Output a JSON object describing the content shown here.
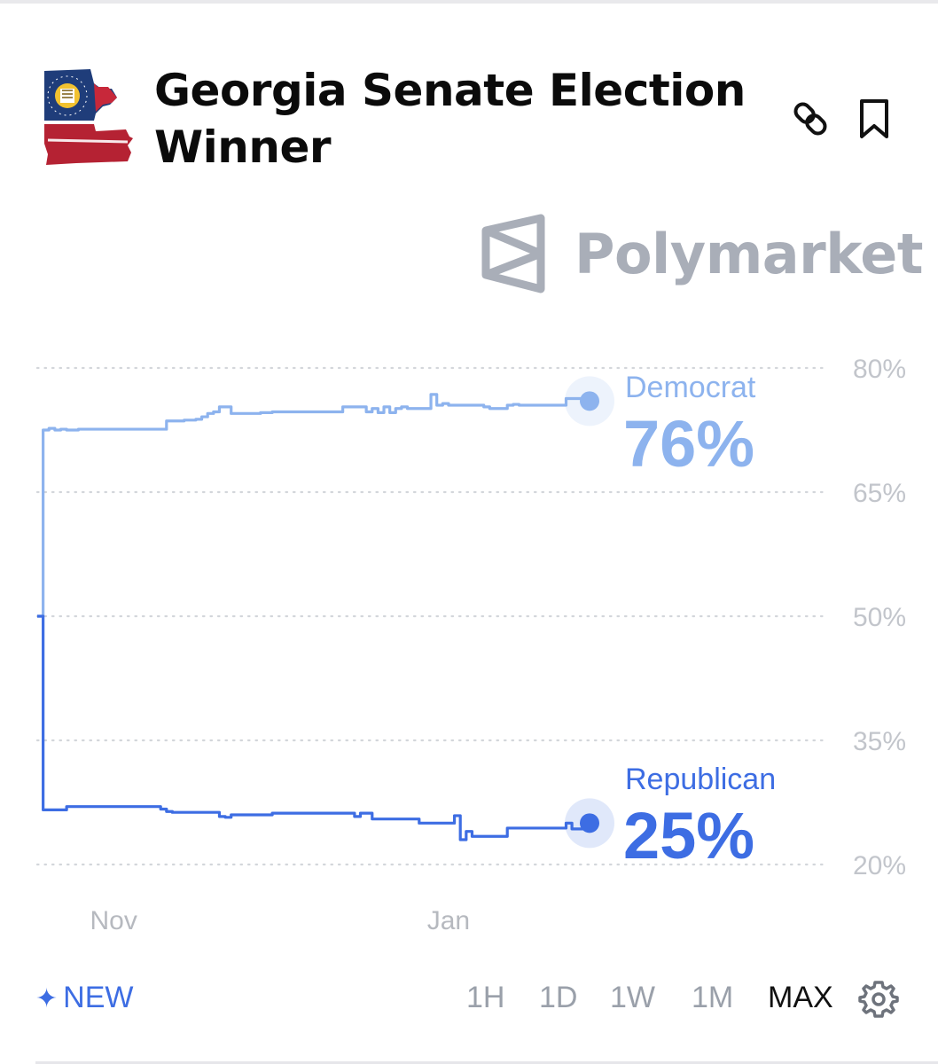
{
  "market": {
    "title": "Georgia Senate Election Winner"
  },
  "watermark": {
    "text": "Polymarket"
  },
  "icons": {
    "logo": "georgia-state-flag-icon",
    "link": "link-icon",
    "bookmark": "bookmark-icon",
    "settings": "gear-icon",
    "spark": "sparkle-icon"
  },
  "chart_data": {
    "type": "line",
    "ylim": [
      20,
      80
    ],
    "yticks": [
      "80%",
      "65%",
      "50%",
      "35%",
      "20%"
    ],
    "ytick_values": [
      80,
      65,
      50,
      35,
      20
    ],
    "xticks": [
      "Nov",
      "Jan"
    ],
    "xtick_index": [
      13,
      70
    ],
    "grid": true,
    "x_count": 95,
    "series": [
      {
        "name": "Democrat",
        "label": "76%",
        "color": "#8db3ee",
        "values": [
          50,
          72.5,
          72.7,
          72.5,
          72.6,
          72.5,
          72.5,
          72.6,
          72.6,
          72.6,
          72.6,
          72.6,
          72.6,
          72.6,
          72.6,
          72.6,
          72.6,
          72.6,
          72.6,
          72.6,
          72.6,
          72.6,
          73.6,
          73.6,
          73.6,
          73.7,
          73.7,
          73.8,
          74.1,
          74.5,
          74.7,
          75.3,
          75.3,
          74.5,
          74.5,
          74.5,
          74.5,
          74.5,
          74.6,
          74.6,
          74.7,
          74.7,
          74.7,
          74.7,
          74.7,
          74.7,
          74.7,
          74.7,
          74.7,
          74.7,
          74.7,
          74.7,
          75.3,
          75.3,
          75.3,
          75.3,
          74.7,
          75.1,
          74.6,
          75.3,
          74.6,
          75.1,
          75.3,
          75.1,
          75.1,
          75.1,
          75.1,
          76.8,
          75.5,
          75.7,
          75.5,
          75.5,
          75.5,
          75.5,
          75.5,
          75.5,
          75.3,
          75.1,
          75.1,
          75.1,
          75.5,
          75.6,
          75.5,
          75.5,
          75.5,
          75.5,
          75.5,
          75.5,
          75.5,
          75.5,
          76.3,
          76.3,
          76.3,
          76.3,
          76.0
        ]
      },
      {
        "name": "Republican",
        "label": "25%",
        "color": "#3d6de3",
        "values": [
          50,
          26.6,
          26.6,
          26.6,
          26.6,
          27.0,
          27.0,
          27.0,
          27.0,
          27.0,
          27.0,
          27.0,
          27.0,
          27.0,
          27.0,
          27.0,
          27.0,
          27.0,
          27.0,
          27.0,
          27.0,
          26.7,
          26.4,
          26.3,
          26.3,
          26.3,
          26.3,
          26.3,
          26.3,
          26.3,
          26.3,
          25.8,
          25.7,
          26.0,
          26.0,
          26.0,
          26.0,
          26.0,
          26.0,
          26.0,
          26.2,
          26.2,
          26.2,
          26.2,
          26.2,
          26.2,
          26.2,
          26.2,
          26.2,
          26.2,
          26.2,
          26.2,
          26.2,
          26.2,
          25.8,
          26.2,
          26.2,
          25.5,
          25.5,
          25.5,
          25.5,
          25.5,
          25.5,
          25.5,
          25.5,
          25.0,
          25.0,
          25.0,
          25.0,
          25.0,
          25.0,
          25.9,
          23.0,
          24.0,
          23.4,
          23.4,
          23.4,
          23.4,
          23.4,
          23.4,
          24.4,
          24.4,
          24.4,
          24.4,
          24.4,
          24.4,
          24.4,
          24.4,
          24.4,
          24.4,
          25.0,
          24.3,
          24.3,
          24.3,
          25.0
        ]
      }
    ]
  },
  "footer": {
    "new_label": "NEW",
    "ranges": [
      {
        "label": "1H",
        "active": false
      },
      {
        "label": "1D",
        "active": false
      },
      {
        "label": "1W",
        "active": false
      },
      {
        "label": "1M",
        "active": false
      },
      {
        "label": "MAX",
        "active": true
      }
    ]
  }
}
